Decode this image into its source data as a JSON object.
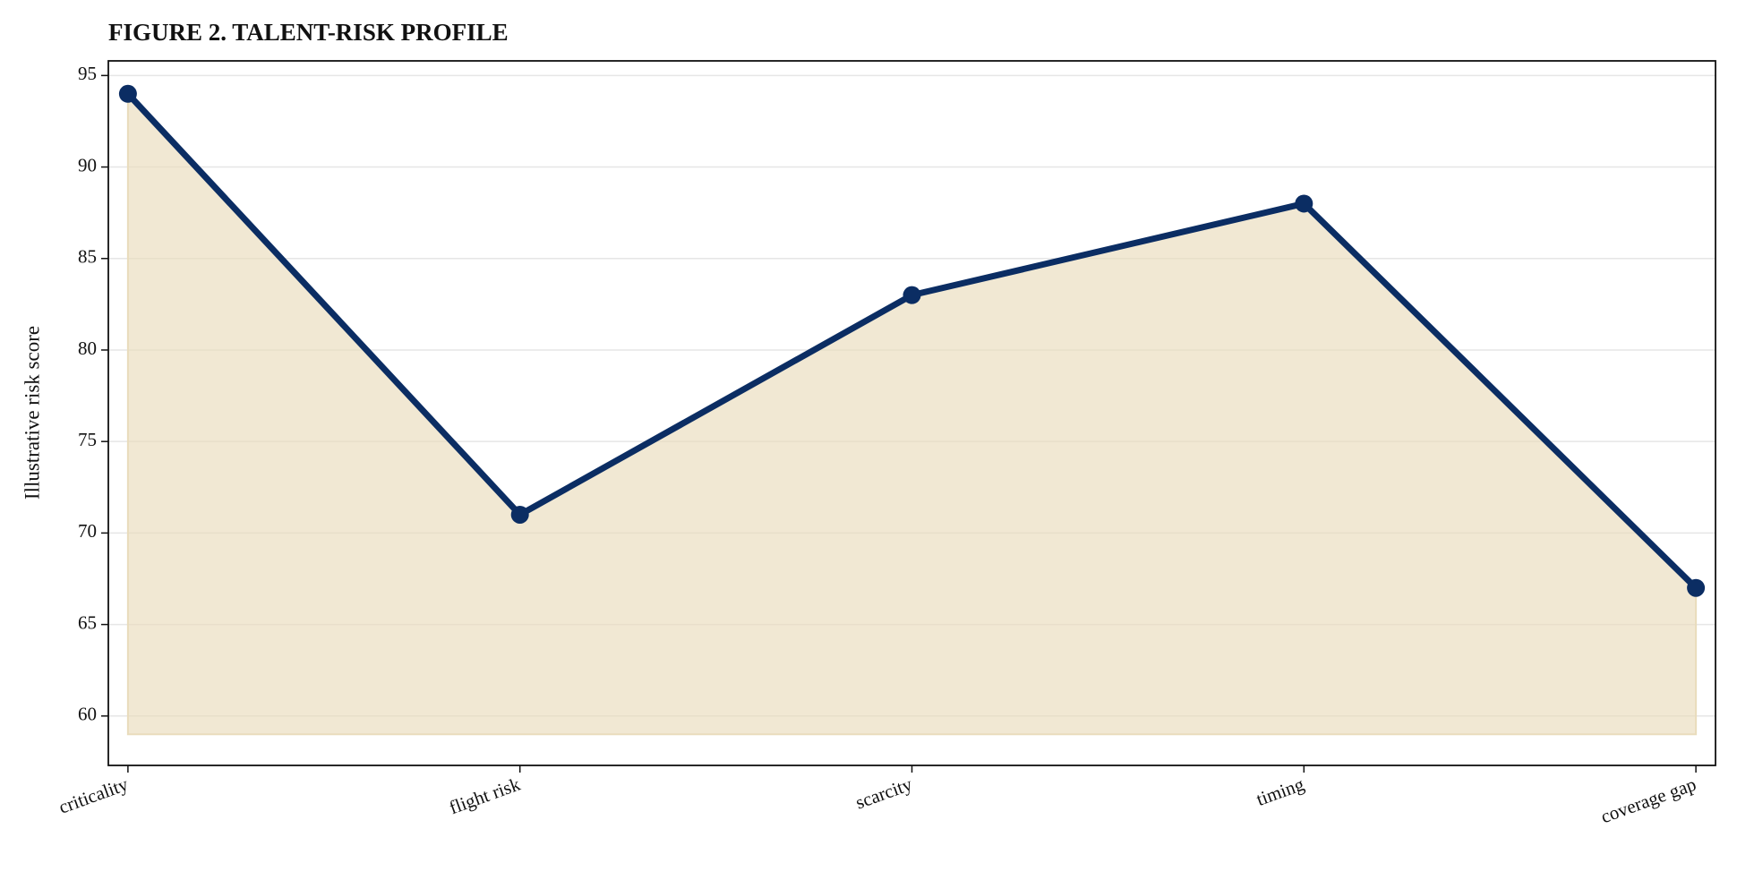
{
  "chart_data": {
    "type": "line",
    "title": "FIGURE 2. TALENT-RISK PROFILE",
    "y_label": "Illustrative risk score",
    "categories": [
      "criticality",
      "flight risk",
      "scarcity",
      "timing",
      "coverage gap"
    ],
    "series": [
      {
        "name": "Illustrative risk score",
        "color": "#0b2d63",
        "values": [
          94,
          71,
          83,
          88,
          67
        ]
      }
    ],
    "fill_color": "#e9dcbc",
    "fill_to": 59,
    "ylim": [
      57.3,
      95.8
    ],
    "yticks": [
      60,
      65,
      70,
      75,
      80,
      85,
      90,
      95
    ],
    "grid": true
  }
}
